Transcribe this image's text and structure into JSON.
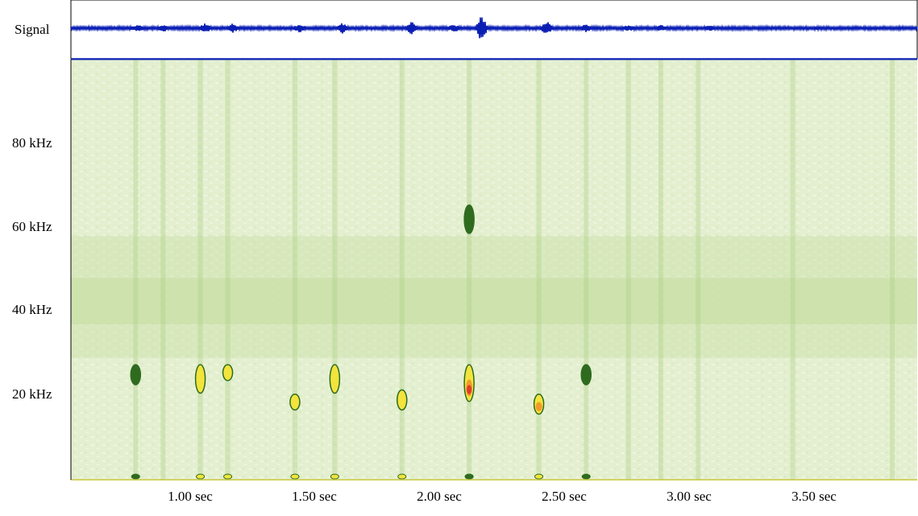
{
  "signal_label": "Signal",
  "y_ticks": [
    "80 kHz",
    "60 kHz",
    "40 kHz",
    "20 kHz"
  ],
  "x_ticks": [
    "1.00 sec",
    "1.50 sec",
    "2.00 sec",
    "2.50 sec",
    "3.00 sec",
    "3.50 sec"
  ],
  "colors": {
    "signal": "#0a1eb4",
    "spectrogram_bg": "#e3efcf",
    "band": "#c9e0a6",
    "streak": "#a9cf82",
    "dark": "#2f6b1f",
    "yellow": "#f2e43c",
    "orange": "#f29a2a",
    "red": "#e23a2a"
  },
  "chart_data": {
    "type": "heatmap",
    "panels": [
      "waveform",
      "spectrogram"
    ],
    "x_unit": "sec",
    "y_unit": "kHz",
    "xlim": [
      0.48,
      3.88
    ],
    "ylim": [
      0,
      100
    ],
    "x_ticks": [
      1.0,
      1.5,
      2.0,
      2.5,
      3.0,
      3.5
    ],
    "y_ticks": [
      20,
      40,
      60,
      80
    ],
    "noise_band_khz": [
      37,
      48
    ],
    "waveform_bursts": [
      {
        "t": 0.75,
        "amp": 0.15
      },
      {
        "t": 0.85,
        "amp": 0.2
      },
      {
        "t": 1.02,
        "amp": 0.3
      },
      {
        "t": 1.13,
        "amp": 0.25
      },
      {
        "t": 1.4,
        "amp": 0.25
      },
      {
        "t": 1.57,
        "amp": 0.3
      },
      {
        "t": 1.85,
        "amp": 0.45
      },
      {
        "t": 2.02,
        "amp": 0.2
      },
      {
        "t": 2.13,
        "amp": 1.0
      },
      {
        "t": 2.39,
        "amp": 0.5
      },
      {
        "t": 2.55,
        "amp": 0.2
      },
      {
        "t": 2.72,
        "amp": 0.12
      },
      {
        "t": 2.85,
        "amp": 0.12
      },
      {
        "t": 3.05,
        "amp": 0.1
      }
    ],
    "calls": [
      {
        "t": 0.74,
        "f_low": 23,
        "f_high": 27,
        "peak": "dark"
      },
      {
        "t": 1.0,
        "f_low": 21,
        "f_high": 27,
        "peak": "yellow"
      },
      {
        "t": 1.11,
        "f_low": 24,
        "f_high": 27,
        "peak": "yellow"
      },
      {
        "t": 1.38,
        "f_low": 17,
        "f_high": 20,
        "peak": "yellow"
      },
      {
        "t": 1.54,
        "f_low": 21,
        "f_high": 27,
        "peak": "yellow"
      },
      {
        "t": 1.81,
        "f_low": 17,
        "f_high": 21,
        "peak": "yellow"
      },
      {
        "t": 2.08,
        "f_low": 19,
        "f_high": 27,
        "peak": "red"
      },
      {
        "t": 2.08,
        "f_low": 59,
        "f_high": 65,
        "peak": "dark"
      },
      {
        "t": 2.36,
        "f_low": 16,
        "f_high": 20,
        "peak": "orange"
      },
      {
        "t": 2.55,
        "f_low": 23,
        "f_high": 27,
        "peak": "dark"
      }
    ],
    "vertical_streaks_sec": [
      0.74,
      0.85,
      1.0,
      1.11,
      1.38,
      1.54,
      1.81,
      2.08,
      2.36,
      2.55,
      2.72,
      2.85,
      3.0,
      3.38,
      3.78
    ]
  }
}
